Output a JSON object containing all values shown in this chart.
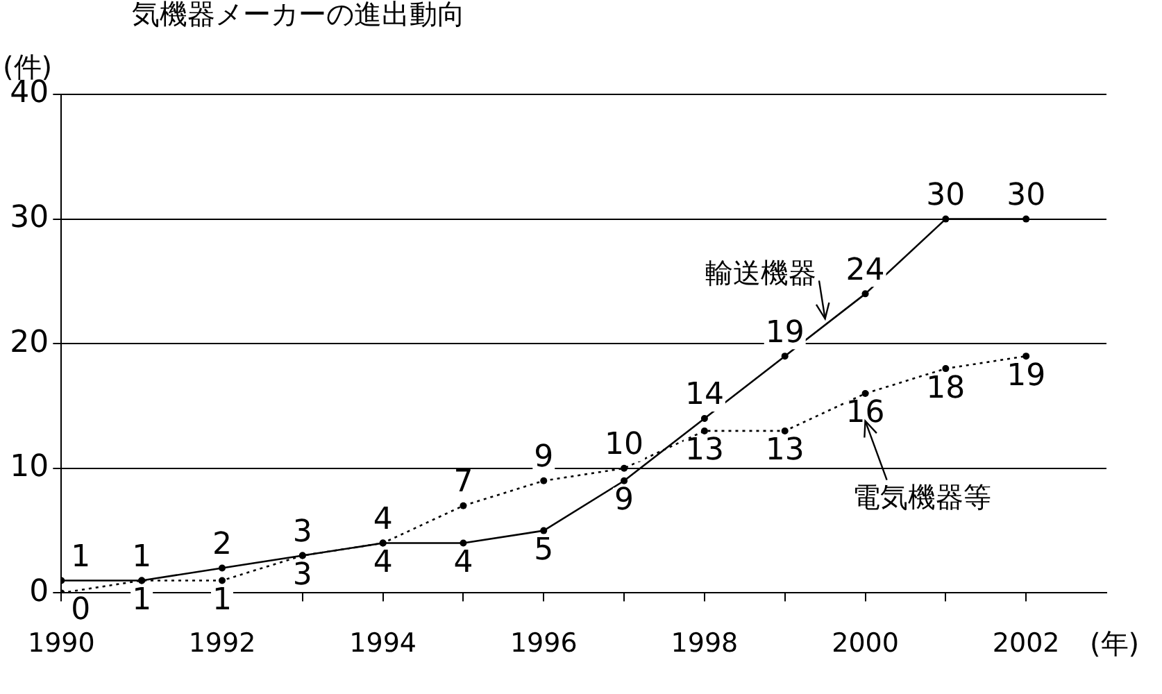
{
  "chart_data": {
    "type": "line",
    "title": "気機器メーカーの進出動向",
    "ylabel": "(件)",
    "xlabel": "(年)",
    "x": [
      1990,
      1991,
      1992,
      1993,
      1994,
      1995,
      1996,
      1997,
      1998,
      1999,
      2000,
      2001,
      2002
    ],
    "series": [
      {
        "name": "輸送機器",
        "color": "#000000",
        "line_style": "solid",
        "values": [
          1,
          1,
          2,
          3,
          4,
          4,
          5,
          9,
          14,
          19,
          24,
          30,
          30
        ]
      },
      {
        "name": "電気機器等",
        "color": "#000000",
        "line_style": "dotted",
        "values": [
          0,
          1,
          1,
          3,
          4,
          7,
          9,
          10,
          13,
          13,
          16,
          18,
          19
        ]
      }
    ],
    "xlim": [
      1990,
      2003
    ],
    "xticks": [
      1990,
      {
        "value": 1991,
        "label": null
      },
      1992,
      {
        "value": 1993,
        "label": null
      },
      1994,
      {
        "value": 1995,
        "label": null
      },
      1996,
      {
        "value": 1997,
        "label": null
      },
      1998,
      {
        "value": 1999,
        "label": null
      },
      2000,
      {
        "value": 2001,
        "label": null
      },
      2002
    ],
    "ylim": [
      0,
      40
    ],
    "yticks": [
      0,
      10,
      20,
      30,
      40
    ],
    "grid": "y",
    "marker": "circle",
    "data_labels": true,
    "legend": false
  }
}
